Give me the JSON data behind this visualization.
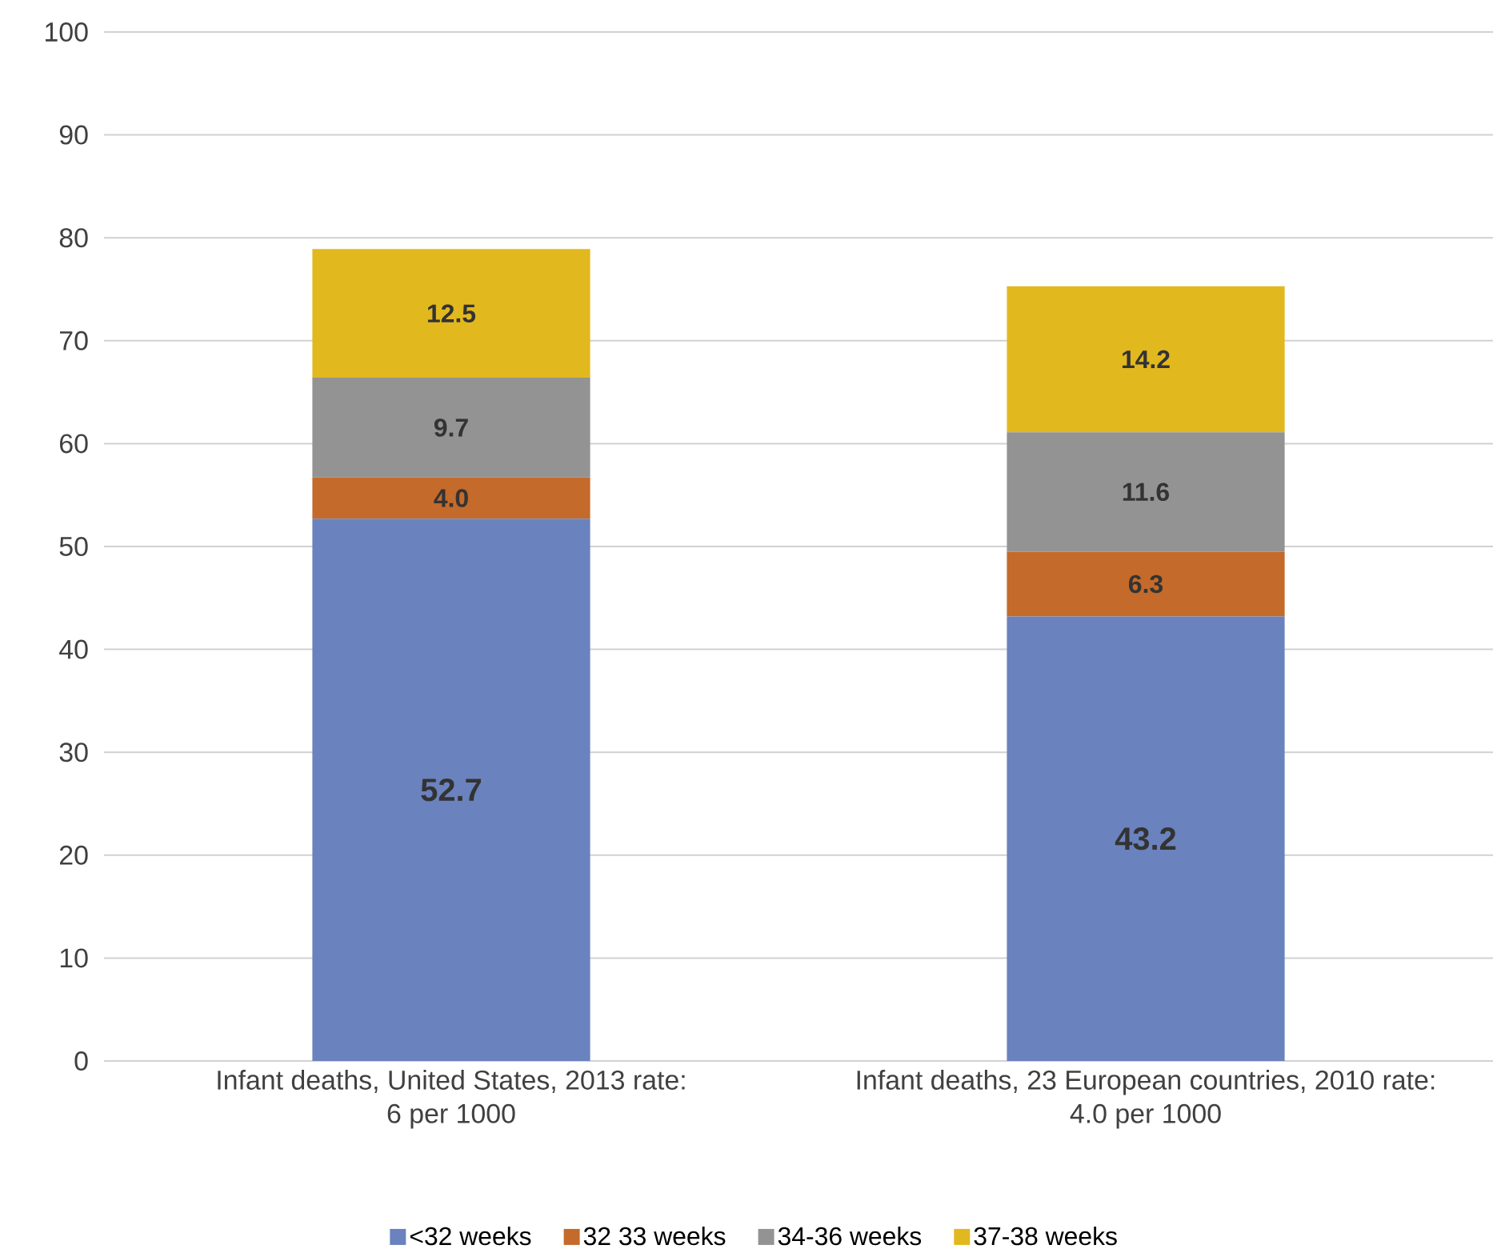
{
  "chart_data": {
    "type": "bar",
    "stacked": true,
    "categories": [
      "Infant deaths, United States, 2013 rate: 6 per 1000",
      "Infant deaths, 23 European countries, 2010 rate: 4.0 per 1000"
    ],
    "series": [
      {
        "name": "<32 weeks",
        "color": "#6a82bd",
        "values": [
          52.7,
          43.2
        ],
        "value_labels": [
          "52.7",
          "43.2"
        ]
      },
      {
        "name": "32 33 weeks",
        "color": "#c46a2a",
        "values": [
          4.0,
          6.3
        ],
        "value_labels": [
          "4.0",
          "6.3"
        ]
      },
      {
        "name": "34-36 weeks",
        "color": "#939393",
        "values": [
          9.7,
          11.6
        ],
        "value_labels": [
          "9.7",
          "11.6"
        ]
      },
      {
        "name": "37-38 weeks",
        "color": "#e2b81f",
        "values": [
          12.5,
          14.2
        ],
        "value_labels": [
          "12.5",
          "14.2"
        ]
      }
    ],
    "ylim": [
      0,
      100
    ],
    "yticks": [
      0,
      10,
      20,
      30,
      40,
      50,
      60,
      70,
      80,
      90,
      100
    ],
    "grid": "y",
    "legend": "bottom"
  }
}
